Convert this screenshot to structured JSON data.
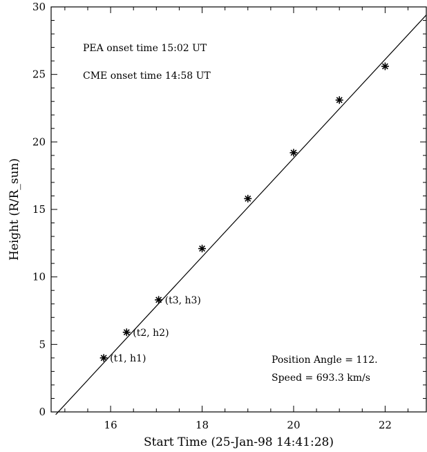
{
  "chart_data": {
    "type": "scatter",
    "title": "",
    "xlabel": "Start Time (25-Jan-98 14:41:28)",
    "ylabel": "Height (R/R_sun)",
    "xlim": [
      14.7,
      22.9
    ],
    "ylim": [
      0,
      30
    ],
    "x_ticks": [
      16,
      18,
      20,
      22
    ],
    "y_ticks": [
      0,
      5,
      10,
      15,
      20,
      25,
      30
    ],
    "grid": false,
    "series": [
      {
        "marker": "asterisk",
        "x": [
          15.85,
          16.35,
          17.05,
          18.0,
          19.0,
          20.0,
          21.0,
          22.0
        ],
        "y": [
          4.0,
          5.9,
          8.3,
          12.1,
          15.8,
          19.2,
          23.1,
          25.6
        ]
      }
    ],
    "fit_line": {
      "x": [
        14.8,
        22.9
      ],
      "y": [
        -0.2,
        29.4
      ]
    },
    "point_labels": [
      {
        "index": 0,
        "text": "(t1, h1)"
      },
      {
        "index": 1,
        "text": "(t2, h2)"
      },
      {
        "index": 2,
        "text": "(t3, h3)"
      }
    ],
    "annotations": {
      "pea_onset": "PEA onset time 15:02 UT",
      "cme_onset": "CME onset time 14:58 UT",
      "position_angle": "Position Angle = 112.",
      "speed": "Speed = 693.3 km/s"
    },
    "colors": {
      "ink": "#000000",
      "background": "#ffffff"
    }
  }
}
